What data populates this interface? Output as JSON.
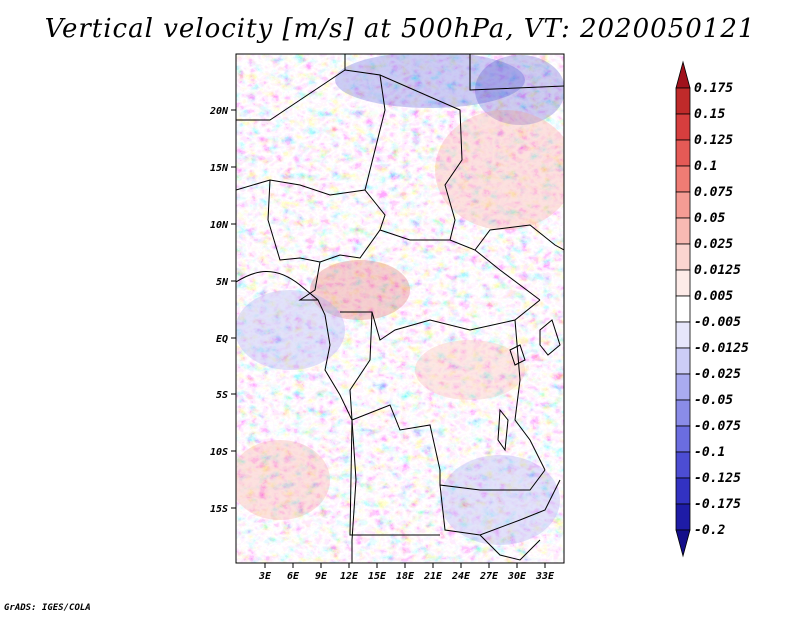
{
  "title": "Vertical velocity [m/s] at 500hPa, VT: 2020050121",
  "credit": "GrADS: IGES/COLA",
  "map": {
    "lat_labels": [
      "20N",
      "15N",
      "10N",
      "5N",
      "EQ",
      "5S",
      "10S",
      "15S"
    ],
    "lon_labels": [
      "3E",
      "6E",
      "9E",
      "12E",
      "15E",
      "18E",
      "21E",
      "24E",
      "27E",
      "30E",
      "33E"
    ]
  },
  "colorbar": {
    "labels": [
      "0.175",
      "0.15",
      "0.125",
      "0.1",
      "0.075",
      "0.05",
      "0.025",
      "0.0125",
      "0.005",
      "-0.005",
      "-0.0125",
      "-0.025",
      "-0.05",
      "-0.075",
      "-0.1",
      "-0.125",
      "-0.175",
      "-0.2"
    ],
    "colors": [
      "#a0121c",
      "#bf2a2a",
      "#d63e3e",
      "#e55a56",
      "#ef7c74",
      "#f59c94",
      "#f8bab3",
      "#fbd5d0",
      "#fdebe8",
      "#ffffff",
      "#e6e6fb",
      "#cccdf7",
      "#a9abf0",
      "#8a8ce8",
      "#6b6de0",
      "#4c4dd3",
      "#3232c2",
      "#1e1ca6",
      "#140f8a"
    ]
  },
  "chart_data": {
    "type": "heatmap",
    "title": "Vertical velocity [m/s] at 500hPa, VT: 2020050121",
    "variable": "Vertical velocity",
    "units": "m/s",
    "level": "500hPa",
    "valid_time": "2020050121",
    "x_ticks": [
      "3E",
      "6E",
      "9E",
      "12E",
      "15E",
      "18E",
      "21E",
      "24E",
      "27E",
      "30E",
      "33E"
    ],
    "y_ticks": [
      "20N",
      "15N",
      "10N",
      "5N",
      "EQ",
      "5S",
      "10S",
      "15S"
    ],
    "lon_range": [
      0.5,
      34.5
    ],
    "lat_range": [
      -20,
      25
    ],
    "contour_levels": [
      -0.2,
      -0.175,
      -0.125,
      -0.1,
      -0.075,
      -0.05,
      -0.025,
      -0.0125,
      -0.005,
      0.005,
      0.0125,
      0.025,
      0.05,
      0.075,
      0.1,
      0.125,
      0.15,
      0.175
    ]
  }
}
